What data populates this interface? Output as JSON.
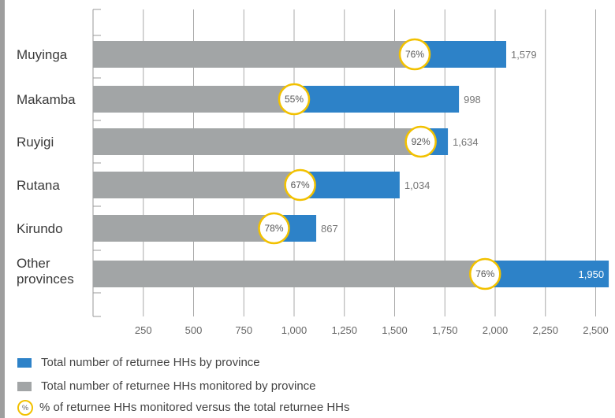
{
  "chart_data": {
    "type": "bar",
    "orientation": "horizontal",
    "categories": [
      "Muyinga",
      "Makamba",
      "Ruyigi",
      "Rutana",
      "Kirundo",
      "Other provinces"
    ],
    "series": [
      {
        "name": "Total number of  returnee HHs by province",
        "values": [
          2055,
          1820,
          1765,
          1525,
          1110,
          2565
        ],
        "labels": [
          "1,579",
          "998",
          "1,634",
          "1,034",
          "867",
          "1,950"
        ]
      },
      {
        "name": "Total number of returnee HHs monitored by province",
        "values": [
          1600,
          1000,
          1630,
          1030,
          870,
          1950
        ]
      }
    ],
    "percent_markers": {
      "name": "% of returnee HHs monitored versus the total returnee HHs",
      "labels": [
        "76%",
        "55%",
        "92%",
        "67%",
        "78%",
        "76%"
      ],
      "values": [
        1600,
        1000,
        1630,
        1030,
        900,
        1950
      ]
    },
    "xticks": [
      "250",
      "500",
      "750",
      "1,000",
      "1,250",
      "1,500",
      "1,750",
      "2,000",
      "2,250",
      "2,500"
    ],
    "xtick_values": [
      250,
      500,
      750,
      1000,
      1250,
      1500,
      1750,
      2000,
      2250,
      2500
    ],
    "xlim": [
      0,
      2600
    ],
    "grid": true,
    "legend_position": "bottom-left",
    "colors": {
      "total": "#2d82c8",
      "monitored": "#a2a5a6",
      "marker": "#f2c100"
    }
  },
  "legend": {
    "total_label": "Total number of  returnee HHs by province",
    "monitored_label": "Total number of returnee HHs monitored by province",
    "percent_label": "% of returnee HHs monitored versus the total returnee HHs",
    "percent_symbol": "%"
  }
}
